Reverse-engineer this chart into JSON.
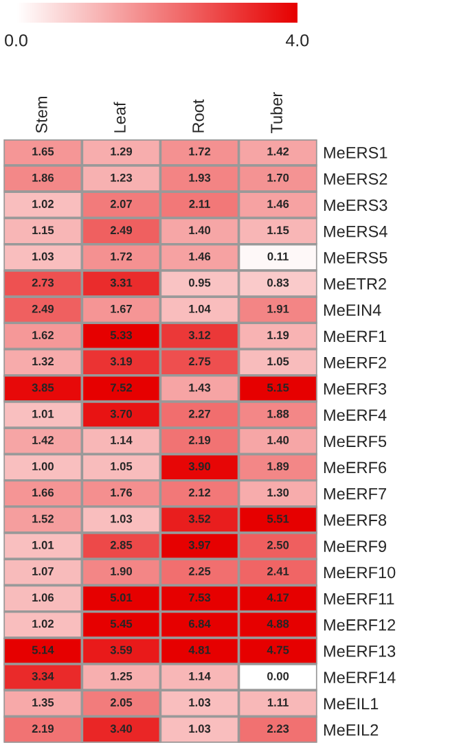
{
  "chart_data": {
    "type": "heatmap",
    "categories": [
      "Stem",
      "Leaf",
      "Root",
      "Tuber"
    ],
    "y_categories": [
      "MeERS1",
      "MeERS2",
      "MeERS3",
      "MeERS4",
      "MeERS5",
      "MeETR2",
      "MeEIN4",
      "MeERF1",
      "MeERF2",
      "MeERF3",
      "MeERF4",
      "MeERF5",
      "MeERF6",
      "MeERF7",
      "MeERF8",
      "MeERF9",
      "MeERF10",
      "MeERF11",
      "MeERF12",
      "MeERF13",
      "MeERF14",
      "MeEIL1",
      "MeEIL2"
    ],
    "cells": [
      [
        1.65,
        1.29,
        1.72,
        1.42
      ],
      [
        1.86,
        1.23,
        1.93,
        1.7
      ],
      [
        1.02,
        2.07,
        2.11,
        1.46
      ],
      [
        1.15,
        2.49,
        1.4,
        1.15
      ],
      [
        1.03,
        1.72,
        1.46,
        0.11
      ],
      [
        2.73,
        3.31,
        0.95,
        0.83
      ],
      [
        2.49,
        1.67,
        1.04,
        1.91
      ],
      [
        1.62,
        5.33,
        3.12,
        1.19
      ],
      [
        1.32,
        3.19,
        2.75,
        1.05
      ],
      [
        3.85,
        7.52,
        1.43,
        5.15
      ],
      [
        1.01,
        3.7,
        2.27,
        1.88
      ],
      [
        1.42,
        1.14,
        2.19,
        1.4
      ],
      [
        1.0,
        1.05,
        3.9,
        1.89
      ],
      [
        1.66,
        1.76,
        2.12,
        1.3
      ],
      [
        1.52,
        1.03,
        3.52,
        5.51
      ],
      [
        1.01,
        2.85,
        3.97,
        2.5
      ],
      [
        1.07,
        1.9,
        2.25,
        2.41
      ],
      [
        1.06,
        5.01,
        7.53,
        4.17
      ],
      [
        1.02,
        5.45,
        6.84,
        4.88
      ],
      [
        5.14,
        3.59,
        4.81,
        4.75
      ],
      [
        3.34,
        1.25,
        1.14,
        0.0
      ],
      [
        1.35,
        2.05,
        1.03,
        1.11
      ],
      [
        2.19,
        3.4,
        1.03,
        2.23
      ]
    ],
    "cell_labels": [
      [
        "1.65",
        "1.29",
        "1.72",
        "1.42"
      ],
      [
        "1.86",
        "1.23",
        "1.93",
        "1.70"
      ],
      [
        "1.02",
        "2.07",
        "2.11",
        "1.46"
      ],
      [
        "1.15",
        "2.49",
        "1.40",
        "1.15"
      ],
      [
        "1.03",
        "1.72",
        "1.46",
        "0.11"
      ],
      [
        "2.73",
        "3.31",
        "0.95",
        "0.83"
      ],
      [
        "2.49",
        "1.67",
        "1.04",
        "1.91"
      ],
      [
        "1.62",
        "5.33",
        "3.12",
        "1.19"
      ],
      [
        "1.32",
        "3.19",
        "2.75",
        "1.05"
      ],
      [
        "3.85",
        "7.52",
        "1.43",
        "5.15"
      ],
      [
        "1.01",
        "3.70",
        "2.27",
        "1.88"
      ],
      [
        "1.42",
        "1.14",
        "2.19",
        "1.40"
      ],
      [
        "1.00",
        "1.05",
        "3.90",
        "1.89"
      ],
      [
        "1.66",
        "1.76",
        "2.12",
        "1.30"
      ],
      [
        "1.52",
        "1.03",
        "3.52",
        "5.51"
      ],
      [
        "1.01",
        "2.85",
        "3.97",
        "2.50"
      ],
      [
        "1.07",
        "1.90",
        "2.25",
        "2.41"
      ],
      [
        "1.06",
        "5.01",
        "7.53",
        "4.17"
      ],
      [
        "1.02",
        "5.45",
        "6.84",
        "4.88"
      ],
      [
        "5.14",
        "3.59",
        "4.81",
        "4.75"
      ],
      [
        "3.34",
        "1.25",
        "1.14",
        "0.00"
      ],
      [
        "1.35",
        "2.05",
        "1.03",
        "1.11"
      ],
      [
        "2.19",
        "3.40",
        "1.03",
        "2.23"
      ]
    ],
    "clim": [
      0,
      4
    ],
    "cticks": [
      {
        "value": 0,
        "label": "0.0"
      },
      {
        "value": 4,
        "label": "4.0"
      }
    ],
    "colors": [
      "#ffffff",
      "#e60000"
    ],
    "data_labels": true
  }
}
